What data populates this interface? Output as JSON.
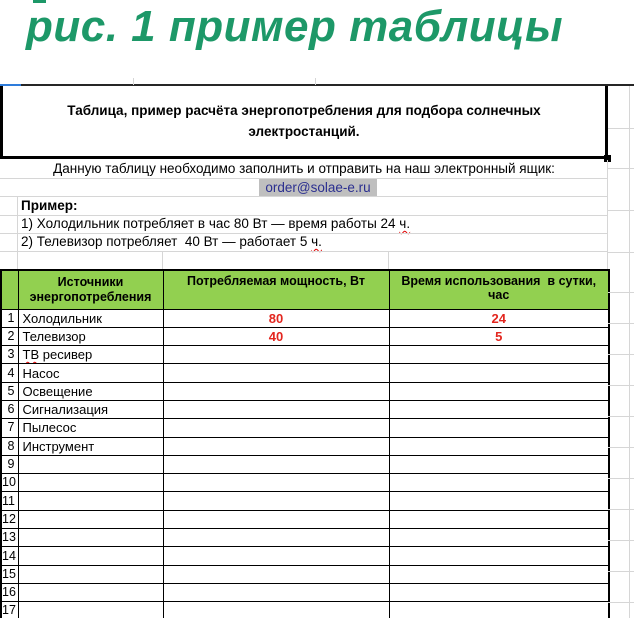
{
  "figure_title": "рис. 1 пример таблицы",
  "box_title": "Таблица, пример расчёта энергопотребления для подбора солнечных\nэлектростанций.",
  "instruction": "Данную таблицу необходимо заполнить и отправить на наш электронный ящик:",
  "email": "order@solae-e.ru",
  "example": {
    "label": "Пример:",
    "lines": [
      {
        "text": "1) Холодильник потребляет в час 80 Вт — время работы 24 ",
        "spellcheck": "ч."
      },
      {
        "text": "2) Телевизор потребляет  40 Вт — работает 5 ",
        "spellcheck": "ч."
      }
    ]
  },
  "table": {
    "headers": {
      "sources": "Источники\nэнергопотребления",
      "power": "Потребляемая мощность, Вт",
      "time": "Время использования  в сутки, час"
    },
    "rows": [
      {
        "num": "1",
        "name": "Холодильник",
        "power": "80",
        "time": "24"
      },
      {
        "num": "2",
        "name": "Телевизор",
        "power": "40",
        "time": "5"
      },
      {
        "num": "3",
        "name": "ТВ ресивер",
        "spellcheck": "ТВ",
        "power": "",
        "time": ""
      },
      {
        "num": "4",
        "name": "Насос",
        "power": "",
        "time": ""
      },
      {
        "num": "5",
        "name": "Освещение",
        "power": "",
        "time": ""
      },
      {
        "num": "6",
        "name": "Сигнализация",
        "power": "",
        "time": ""
      },
      {
        "num": "7",
        "name": "Пылесос",
        "power": "",
        "time": ""
      },
      {
        "num": "8",
        "name": "Инструмент",
        "power": "",
        "time": ""
      },
      {
        "num": "9",
        "name": "",
        "power": "",
        "time": ""
      },
      {
        "num": "10",
        "name": "",
        "power": "",
        "time": ""
      },
      {
        "num": "11",
        "name": "",
        "power": "",
        "time": ""
      },
      {
        "num": "12",
        "name": "",
        "power": "",
        "time": ""
      },
      {
        "num": "13",
        "name": "",
        "power": "",
        "time": ""
      },
      {
        "num": "14",
        "name": "",
        "power": "",
        "time": ""
      },
      {
        "num": "15",
        "name": "",
        "power": "",
        "time": ""
      },
      {
        "num": "16",
        "name": "",
        "power": "",
        "time": ""
      },
      {
        "num": "17",
        "name": "",
        "power": "",
        "time": ""
      }
    ]
  },
  "colors": {
    "figure_title_green": "#1d9868",
    "table_header_green": "#92d050",
    "value_red": "#e3261f",
    "email_text_blue": "#2b2f90",
    "email_highlight_gray": "#bfbfbf",
    "pane_accent_blue": "#2e7cdb"
  }
}
